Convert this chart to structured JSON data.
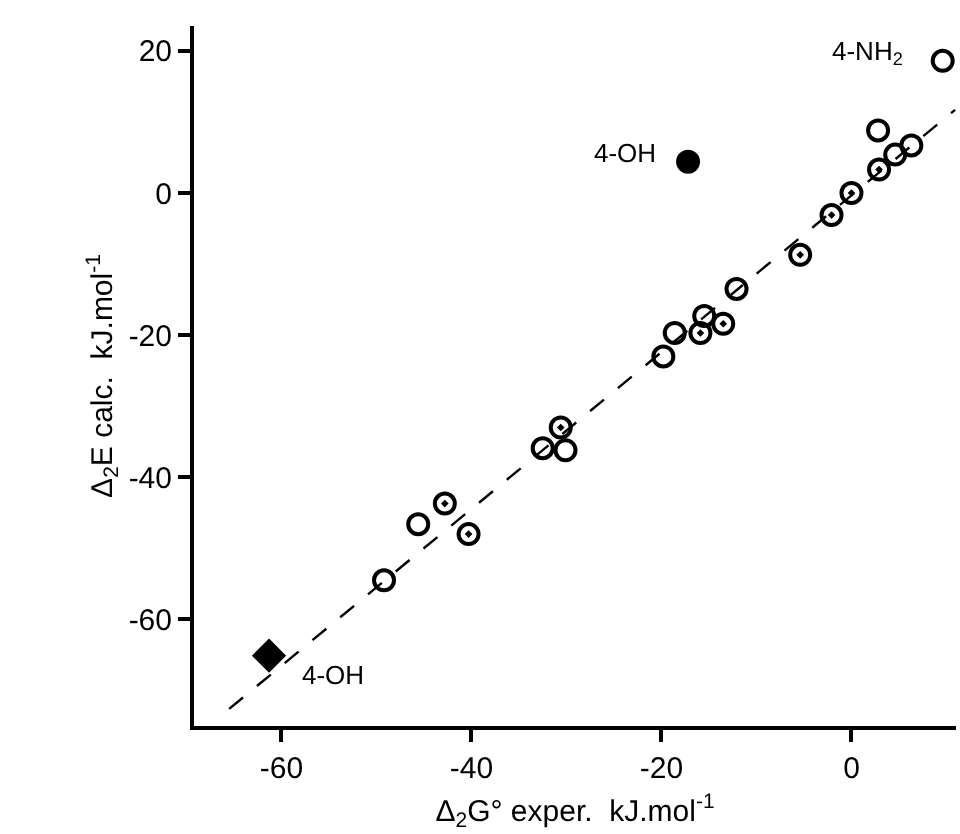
{
  "chart_data": {
    "type": "scatter",
    "xlabel": "Δ$_{2}$G° exper.  kJ.mol$^{-1}$",
    "ylabel": "Δ$_{2}$E calc.  kJ.mol$^{-1}$",
    "xlim": [
      -69.2,
      11
    ],
    "ylim": [
      -75,
      23.5
    ],
    "xticks": [
      -60,
      -40,
      -20,
      0
    ],
    "yticks": [
      -60,
      -40,
      -20,
      0,
      20
    ],
    "legend": false,
    "series": [
      {
        "type": "line",
        "color": "#000000",
        "line_style": "dashed",
        "marker": "none",
        "x": [
          -65.5,
          10.9
        ],
        "values": [
          -72.6,
          11.7
        ]
      },
      {
        "color": "#000000",
        "marker": "circle-open",
        "x": [
          9.6,
          2.8,
          6.3,
          4.6,
          -12.1,
          -15.5,
          -18.6,
          -19.8,
          -32.5,
          -30.1,
          -45.6,
          -49.2
        ],
        "values": [
          18.6,
          8.8,
          6.7,
          5.4,
          -13.5,
          -17.3,
          -19.7,
          -23,
          -35.9,
          -36.2,
          -46.6,
          -54.5
        ]
      },
      {
        "color": "#000000",
        "marker": "circle-open-dot",
        "x": [
          2.9,
          0,
          -2.1,
          -5.4,
          -13.5,
          -15.9,
          -30.6,
          -42.8,
          -40.3
        ],
        "values": [
          3.3,
          0,
          -3.1,
          -8.7,
          -18.4,
          -19.7,
          -33,
          -43.7,
          -48
        ]
      },
      {
        "color": "#000000",
        "marker": "circle",
        "x": [
          -17.2
        ],
        "values": [
          4.4
        ]
      },
      {
        "color": "#000000",
        "marker": "diamond",
        "x": [
          -61.3
        ],
        "values": [
          -65.1
        ]
      }
    ],
    "annotations": [
      {
        "text": "4-NH$_{2}$",
        "x": 9.6,
        "y": 18.6
      },
      {
        "text": "4-OH",
        "x": -17.2,
        "y": 4.4
      },
      {
        "text": "4-OH",
        "x": -61.3,
        "y": -65.1
      }
    ]
  }
}
